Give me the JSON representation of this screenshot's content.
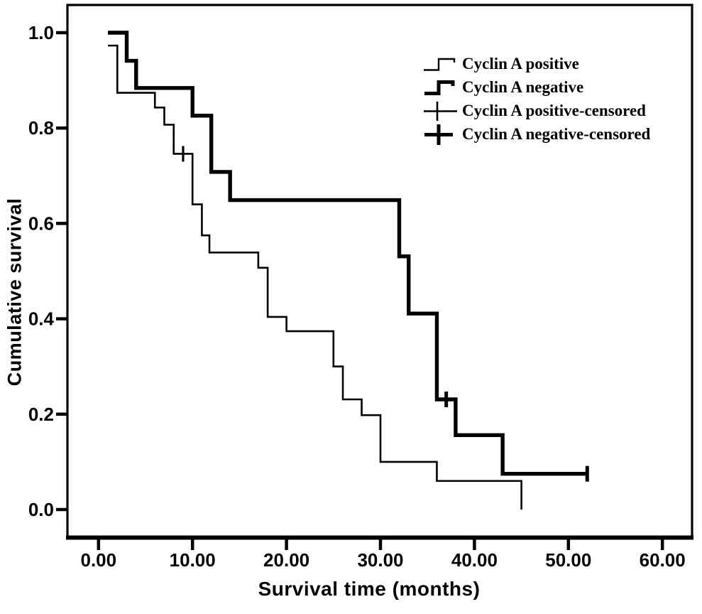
{
  "figure": {
    "background": "#ffffff",
    "ink": "#000000"
  },
  "chart_data": {
    "type": "line",
    "subtype": "kaplan_meier_step",
    "title": "",
    "xlabel": "Survival time (months)",
    "ylabel": "Cumulative survival",
    "xlim": [
      -3.3,
      63.1
    ],
    "ylim": [
      -0.057,
      1.058
    ],
    "grid": false,
    "x_ticks": [
      {
        "v": 0,
        "label": "0.00"
      },
      {
        "v": 10,
        "label": "10.00"
      },
      {
        "v": 20,
        "label": "20.00"
      },
      {
        "v": 30,
        "label": "30.00"
      },
      {
        "v": 40,
        "label": "40.00"
      },
      {
        "v": 50,
        "label": "50.00"
      },
      {
        "v": 60,
        "label": "60.00"
      }
    ],
    "y_ticks": [
      {
        "v": 0.0,
        "label": "0.0"
      },
      {
        "v": 0.2,
        "label": "0.2"
      },
      {
        "v": 0.4,
        "label": "0.4"
      },
      {
        "v": 0.6,
        "label": "0.6"
      },
      {
        "v": 0.8,
        "label": "0.8"
      },
      {
        "v": 1.0,
        "label": "1.0"
      }
    ],
    "series": [
      {
        "name": "Cyclin A positive",
        "line_weight": "thin",
        "color": "#000000",
        "steps": [
          [
            1,
            0.973
          ],
          [
            2,
            0.874
          ],
          [
            6,
            0.843
          ],
          [
            7,
            0.807
          ],
          [
            8,
            0.746
          ],
          [
            10,
            0.64
          ],
          [
            11,
            0.575
          ],
          [
            11.8,
            0.539
          ],
          [
            17,
            0.507
          ],
          [
            18,
            0.404
          ],
          [
            20,
            0.374
          ],
          [
            25,
            0.3
          ],
          [
            26,
            0.231
          ],
          [
            28,
            0.198
          ],
          [
            30,
            0.1
          ],
          [
            36,
            0.06
          ]
        ],
        "end_month": 45,
        "end_drop_to": 0.0,
        "censored": [
          [
            9,
            0.746
          ]
        ]
      },
      {
        "name": "Cyclin A negative",
        "line_weight": "thick",
        "color": "#000000",
        "steps": [
          [
            1,
            1.0
          ],
          [
            3,
            0.941
          ],
          [
            4,
            0.884
          ],
          [
            10,
            0.826
          ],
          [
            12,
            0.708
          ],
          [
            14,
            0.649
          ],
          [
            32,
            0.531
          ],
          [
            33,
            0.411
          ],
          [
            36,
            0.231
          ],
          [
            38,
            0.156
          ],
          [
            43,
            0.075
          ]
        ],
        "end_month": 52,
        "end_drop_to": null,
        "censored": [
          [
            37,
            0.231
          ],
          [
            52,
            0.075
          ]
        ]
      }
    ],
    "legend": {
      "position": "upper_right",
      "entries": [
        {
          "label": "Cyclin A positive",
          "glyph": "thin-step-line"
        },
        {
          "label": "Cyclin A negative",
          "glyph": "thick-step-line"
        },
        {
          "label": "Cyclin A positive-censored",
          "glyph": "thin-censor-plus"
        },
        {
          "label": "Cyclin A negative-censored",
          "glyph": "thick-censor-plus"
        }
      ]
    }
  }
}
